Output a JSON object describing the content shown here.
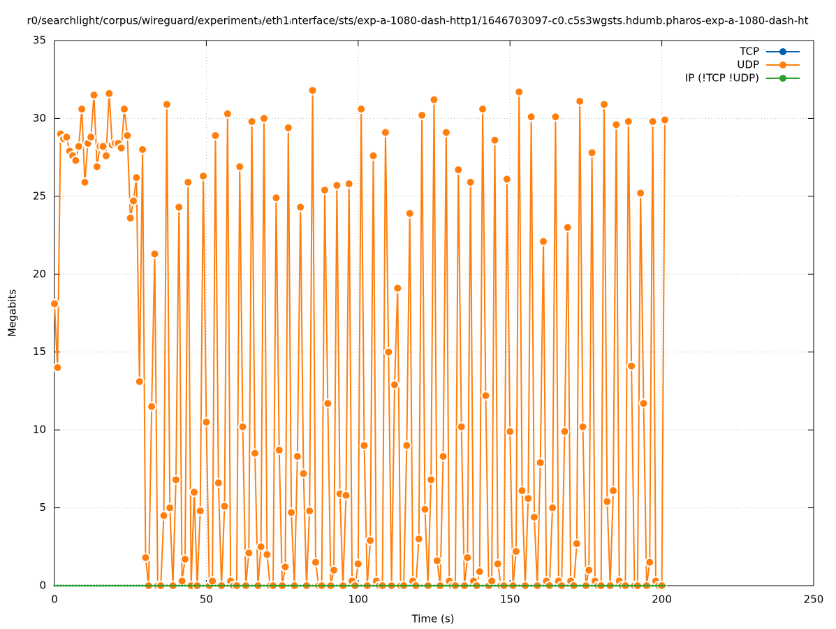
{
  "chart_data": {
    "type": "line",
    "title": "r0/searchlight/corpus/wireguard/experiment₃/eth1ᵢnterface/sts/exp-a-1080-dash-http1/1646703097-c0.c5s3wgsts.hdumb.pharos-exp-a-1080-dash-ht",
    "x_label": "Time (s)",
    "y_label": "Megabits",
    "xlim": [
      0,
      250
    ],
    "xticks": [
      0,
      50,
      100,
      150,
      200,
      250
    ],
    "ylim": [
      0,
      35
    ],
    "yticks": [
      0,
      5,
      10,
      15,
      20,
      25,
      30,
      35
    ],
    "grid": true,
    "legend": "top-right",
    "x": [
      0,
      1,
      2,
      3,
      4,
      5,
      6,
      7,
      8,
      9,
      10,
      11,
      12,
      13,
      14,
      15,
      16,
      17,
      18,
      19,
      20,
      21,
      22,
      23,
      24,
      25,
      26,
      27,
      28,
      29,
      30,
      31,
      32,
      33,
      34,
      35,
      36,
      37,
      38,
      39,
      40,
      41,
      42,
      43,
      44,
      45,
      46,
      47,
      48,
      49,
      50,
      51,
      52,
      53,
      54,
      55,
      56,
      57,
      58,
      59,
      60,
      61,
      62,
      63,
      64,
      65,
      66,
      67,
      68,
      69,
      70,
      71,
      72,
      73,
      74,
      75,
      76,
      77,
      78,
      79,
      80,
      81,
      82,
      83,
      84,
      85,
      86,
      87,
      88,
      89,
      90,
      91,
      92,
      93,
      94,
      95,
      96,
      97,
      98,
      99,
      100,
      101,
      102,
      103,
      104,
      105,
      106,
      107,
      108,
      109,
      110,
      111,
      112,
      113,
      114,
      115,
      116,
      117,
      118,
      119,
      120,
      121,
      122,
      123,
      124,
      125,
      126,
      127,
      128,
      129,
      130,
      131,
      132,
      133,
      134,
      135,
      136,
      137,
      138,
      139,
      140,
      141,
      142,
      143,
      144,
      145,
      146,
      147,
      148,
      149,
      150,
      151,
      152,
      153,
      154,
      155,
      156,
      157,
      158,
      159,
      160,
      161,
      162,
      163,
      164,
      165,
      166,
      167,
      168,
      169,
      170,
      171,
      172,
      173,
      174,
      175,
      176,
      177,
      178,
      179,
      180,
      181,
      182,
      183,
      184,
      185,
      186,
      187,
      188,
      189,
      190,
      191,
      192,
      193,
      194,
      195,
      196,
      197,
      198,
      199,
      200,
      201
    ],
    "series": [
      {
        "name": "TCP",
        "color": "#0060ad",
        "values": [
          0,
          0,
          0,
          0,
          0,
          0,
          0,
          0,
          0,
          0,
          0,
          0,
          0,
          0,
          0,
          0,
          0,
          0,
          0,
          0,
          0,
          0,
          0,
          0,
          0,
          0,
          0,
          0,
          0,
          0,
          0,
          0,
          0,
          0,
          0,
          0,
          0,
          0,
          0,
          0,
          0,
          0,
          0,
          0,
          0,
          0,
          0,
          0,
          0,
          0,
          0,
          0,
          0,
          0,
          0,
          0,
          0,
          0,
          0,
          0,
          0,
          0,
          0,
          0,
          0,
          0,
          0,
          0,
          0,
          0,
          0,
          0,
          0,
          0,
          0,
          0,
          0,
          0,
          0,
          0,
          0,
          0,
          0,
          0,
          0,
          0,
          0,
          0,
          0,
          0,
          0,
          0,
          0,
          0,
          0,
          0,
          0,
          0,
          0,
          0,
          0,
          0,
          0,
          0,
          0,
          0,
          0,
          0,
          0,
          0,
          0,
          0,
          0,
          0,
          0,
          0,
          0,
          0,
          0,
          0,
          0,
          0,
          0,
          0,
          0,
          0,
          0,
          0,
          0,
          0,
          0,
          0,
          0,
          0,
          0,
          0,
          0,
          0,
          0,
          0,
          0,
          0,
          0,
          0,
          0,
          0,
          0,
          0,
          0,
          0,
          0,
          0,
          0,
          0,
          0,
          0,
          0,
          0,
          0,
          0,
          0,
          0,
          0,
          0,
          0,
          0,
          0,
          0,
          0,
          0,
          0,
          0,
          0,
          0,
          0,
          0,
          0,
          0,
          0,
          0,
          0,
          0,
          0,
          0,
          0,
          0,
          0,
          0,
          0,
          0,
          0,
          0,
          0,
          0,
          0,
          0,
          0,
          0,
          0,
          0,
          0,
          0
        ]
      },
      {
        "name": "UDP",
        "color": "#ff7f0e",
        "values": [
          18.1,
          14.0,
          29.0,
          28.7,
          28.8,
          27.9,
          27.6,
          27.3,
          28.2,
          30.6,
          25.9,
          28.4,
          28.8,
          31.5,
          26.9,
          28.2,
          28.2,
          27.6,
          31.6,
          28.3,
          28.4,
          28.4,
          28.1,
          30.6,
          28.9,
          23.6,
          24.7,
          26.2,
          13.1,
          28.0,
          1.8,
          0,
          11.5,
          21.3,
          0,
          0,
          4.5,
          30.9,
          5.0,
          0,
          6.8,
          24.3,
          0.3,
          1.7,
          25.9,
          0,
          6.0,
          0,
          4.8,
          26.3,
          10.5,
          0,
          0.3,
          28.9,
          6.6,
          0,
          5.1,
          30.3,
          0.3,
          0,
          0,
          26.9,
          10.2,
          0,
          2.1,
          29.8,
          8.5,
          0,
          2.5,
          30.0,
          2.0,
          0,
          0,
          24.9,
          8.7,
          0,
          1.2,
          29.4,
          4.7,
          0,
          8.3,
          24.3,
          7.2,
          0,
          4.8,
          31.8,
          1.5,
          0,
          0,
          25.4,
          11.7,
          0,
          1.0,
          25.7,
          5.9,
          0,
          5.8,
          25.8,
          0.3,
          0,
          1.4,
          30.6,
          9.0,
          0,
          2.9,
          27.6,
          0.3,
          0,
          0,
          29.1,
          15.0,
          0,
          12.9,
          19.1,
          0,
          0,
          9.0,
          23.9,
          0.3,
          0,
          3.0,
          30.2,
          4.9,
          0,
          6.8,
          31.2,
          1.6,
          0,
          8.3,
          29.1,
          0.3,
          0,
          0,
          26.7,
          10.2,
          0,
          1.8,
          25.9,
          0.3,
          0,
          0.9,
          30.6,
          12.2,
          0,
          0.3,
          28.6,
          1.4,
          0,
          0,
          26.1,
          9.9,
          0,
          2.2,
          31.7,
          6.1,
          0,
          5.6,
          30.1,
          4.4,
          0,
          7.9,
          22.1,
          0.3,
          0,
          5.0,
          30.1,
          0.3,
          0,
          9.9,
          23.0,
          0.3,
          0,
          2.7,
          31.1,
          10.2,
          0,
          1.0,
          27.8,
          0.3,
          0,
          0,
          30.9,
          5.4,
          0,
          6.1,
          29.6,
          0.3,
          0,
          0,
          29.8,
          14.1,
          0,
          0,
          25.2,
          11.7,
          0,
          1.5,
          29.8,
          0.3,
          0,
          0,
          29.9
        ]
      },
      {
        "name": "IP (!TCP  !UDP)",
        "color": "#2ca02c",
        "values": [
          0,
          0,
          0,
          0,
          0,
          0,
          0,
          0,
          0,
          0,
          0,
          0,
          0,
          0,
          0,
          0,
          0,
          0,
          0,
          0,
          0,
          0,
          0,
          0,
          0,
          0,
          0,
          0,
          0,
          0,
          0,
          0,
          0,
          0,
          0,
          0,
          0,
          0,
          0,
          0,
          0,
          0,
          0,
          0,
          0,
          0,
          0,
          0,
          0,
          0,
          0,
          0,
          0,
          0,
          0,
          0,
          0,
          0,
          0,
          0,
          0,
          0,
          0,
          0,
          0,
          0,
          0,
          0,
          0,
          0,
          0,
          0,
          0,
          0,
          0,
          0,
          0,
          0,
          0,
          0,
          0,
          0,
          0,
          0,
          0,
          0,
          0,
          0,
          0,
          0,
          0,
          0,
          0,
          0,
          0,
          0,
          0,
          0,
          0,
          0,
          0,
          0,
          0,
          0,
          0,
          0,
          0,
          0,
          0,
          0,
          0,
          0,
          0,
          0,
          0,
          0,
          0,
          0,
          0,
          0,
          0,
          0,
          0,
          0,
          0,
          0,
          0,
          0,
          0,
          0,
          0,
          0,
          0,
          0,
          0,
          0,
          0,
          0,
          0,
          0,
          0,
          0,
          0,
          0,
          0,
          0,
          0,
          0,
          0,
          0,
          0,
          0,
          0,
          0,
          0,
          0,
          0,
          0,
          0,
          0,
          0,
          0,
          0,
          0,
          0,
          0,
          0,
          0,
          0,
          0,
          0,
          0,
          0,
          0,
          0,
          0,
          0,
          0,
          0,
          0,
          0,
          0,
          0,
          0,
          0,
          0,
          0,
          0,
          0,
          0,
          0,
          0,
          0,
          0,
          0,
          0,
          0,
          0,
          0,
          0,
          0,
          0
        ]
      }
    ]
  }
}
